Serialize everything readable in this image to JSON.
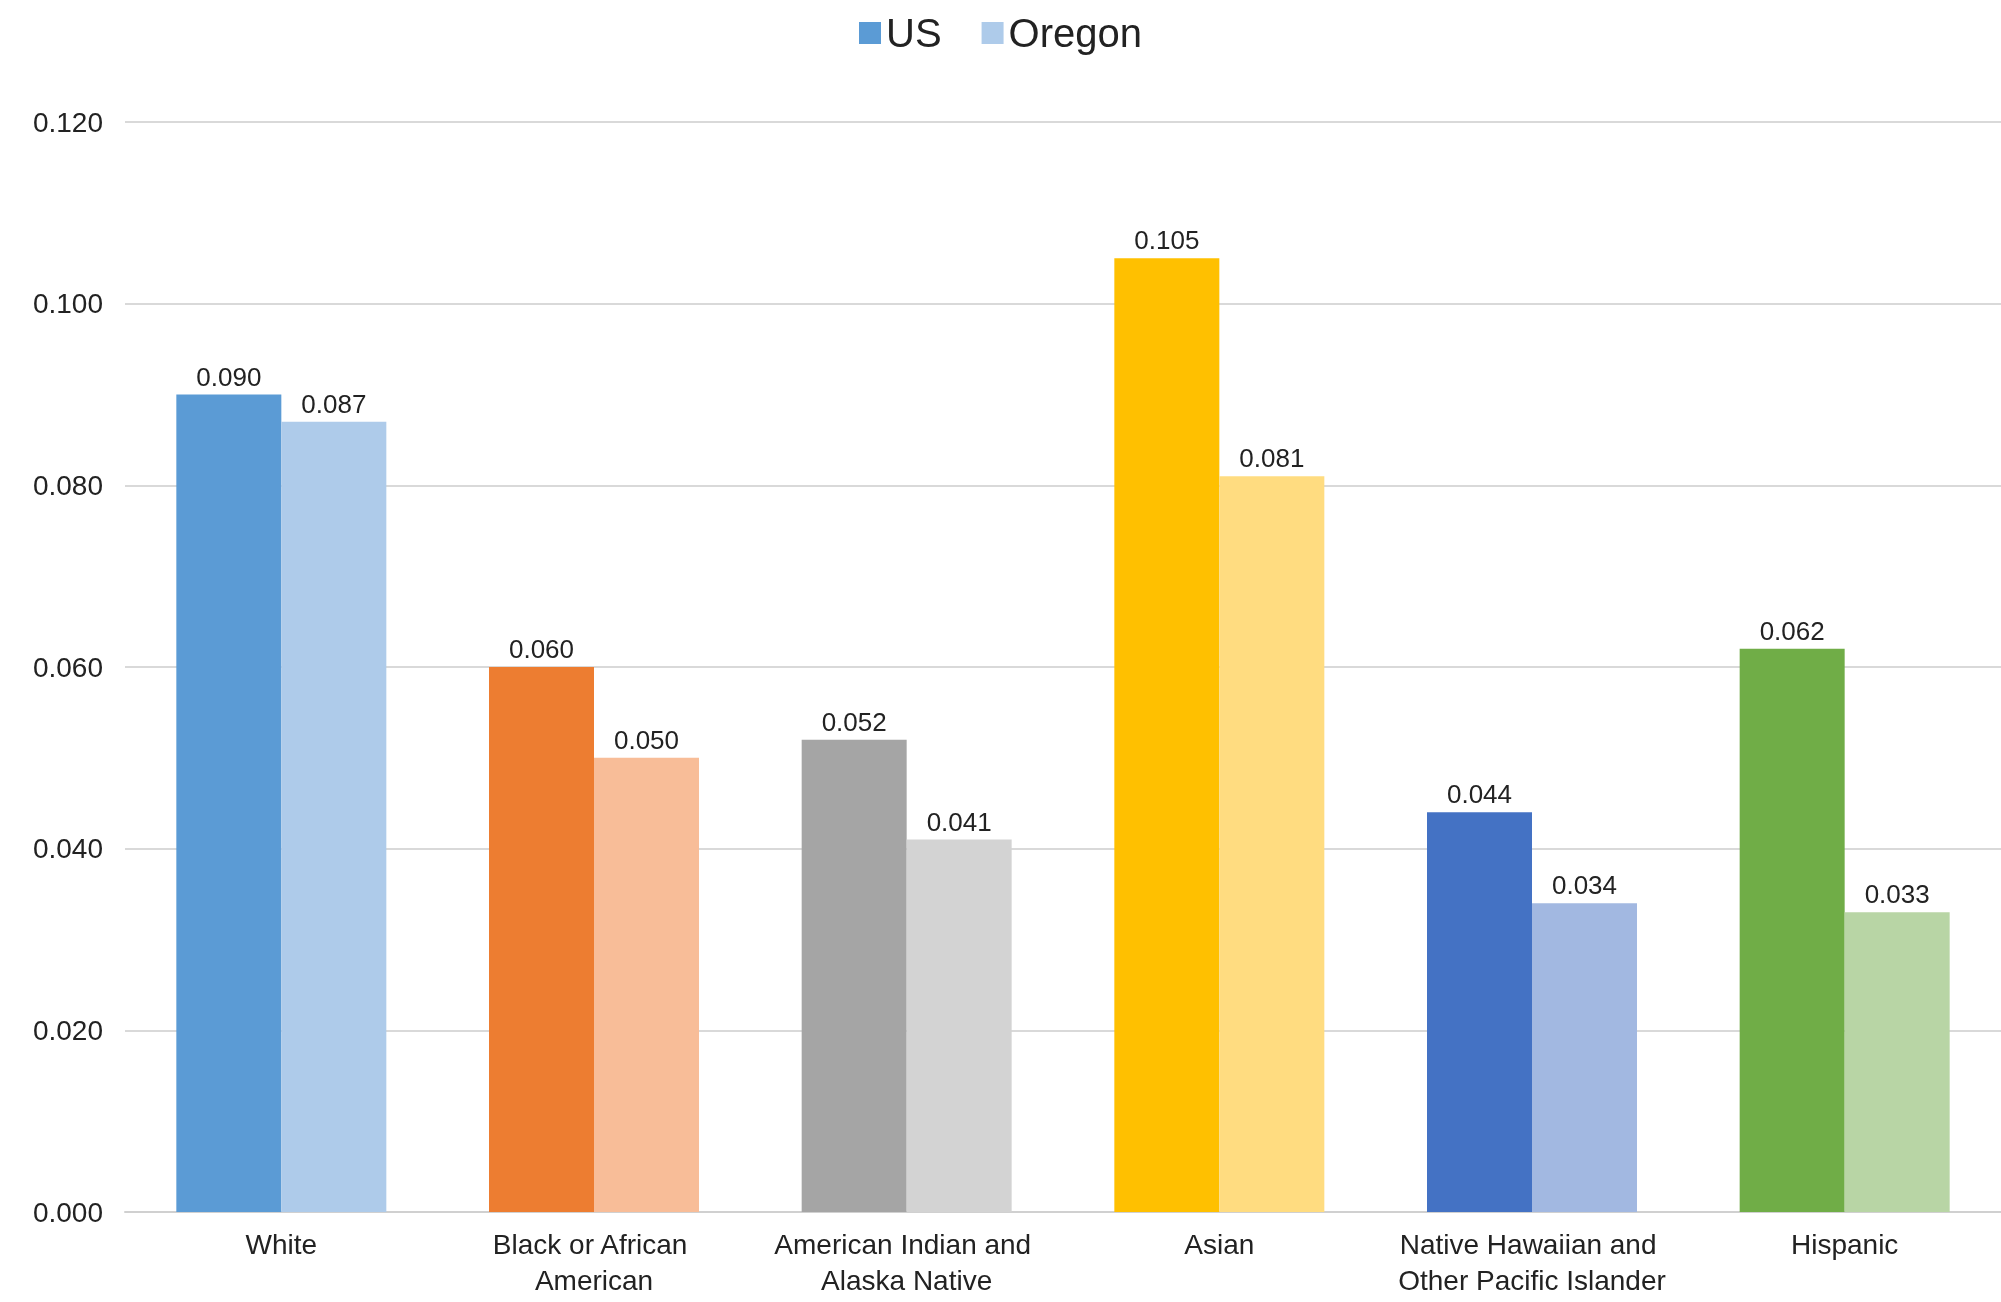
{
  "chart_data": {
    "type": "bar",
    "categories": [
      "White",
      "Black or African American",
      "American Indian and Alaska Native",
      "Asian",
      "Native Hawaiian and Other Pacific Islander",
      "Hispanic"
    ],
    "series": [
      {
        "name": "US",
        "color": "#5b9bd5",
        "values": [
          0.09,
          0.06,
          0.052,
          0.105,
          0.044,
          0.062
        ],
        "colors": [
          "#5b9bd5",
          "#ed7d31",
          "#a5a5a5",
          "#ffc000",
          "#4472c4",
          "#70ad47"
        ],
        "value_labels": [
          "0.090",
          "0.060",
          "0.052",
          "0.105",
          "0.044",
          "0.062"
        ]
      },
      {
        "name": "Oregon",
        "color": "#aecbea",
        "values": [
          0.087,
          0.05,
          0.041,
          0.081,
          0.034,
          0.033
        ],
        "colors": [
          "#aecbea",
          "#f8bd98",
          "#d3d3d3",
          "#ffdc80",
          "#a2b8e1",
          "#b8d5a5"
        ],
        "value_labels": [
          "0.087",
          "0.050",
          "0.041",
          "0.081",
          "0.034",
          "0.033"
        ]
      }
    ],
    "ylim": [
      0,
      0.12
    ],
    "yticks": [
      {
        "value": 0,
        "label": "0.000"
      },
      {
        "value": 0.02,
        "label": "0.020"
      },
      {
        "value": 0.04,
        "label": "0.040"
      },
      {
        "value": 0.06,
        "label": "0.060"
      },
      {
        "value": 0.08,
        "label": "0.080"
      },
      {
        "value": 0.1,
        "label": "0.100"
      },
      {
        "value": 0.12,
        "label": "0.120"
      }
    ],
    "grid": "y",
    "legend": "top"
  }
}
